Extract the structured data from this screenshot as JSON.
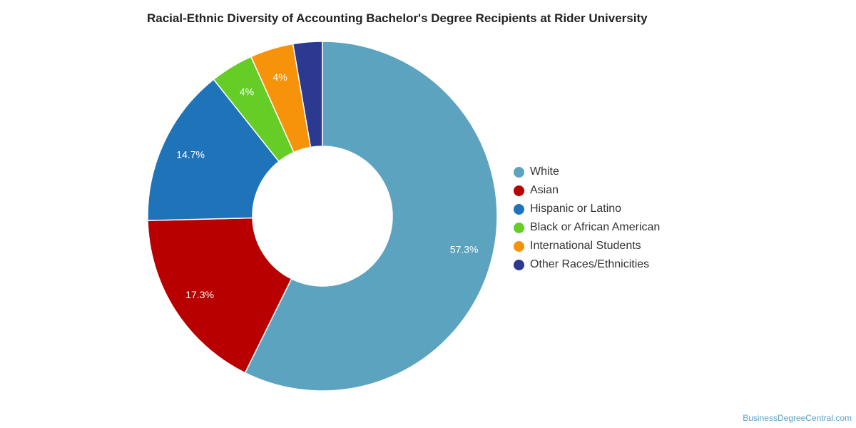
{
  "chart_data": {
    "type": "pie",
    "title": "Racial-Ethnic Diversity of Accounting Bachelor's Degree Recipients at Rider University",
    "donut": true,
    "legend_position": "right",
    "slices": [
      {
        "label": "White",
        "value": 57.3,
        "display": "57.3%",
        "color": "#5ca3c0"
      },
      {
        "label": "Asian",
        "value": 17.3,
        "display": "17.3%",
        "color": "#b90000"
      },
      {
        "label": "Hispanic or Latino",
        "value": 14.7,
        "display": "14.7%",
        "color": "#1e73b9"
      },
      {
        "label": "Black or African American",
        "value": 4.0,
        "display": "4%",
        "color": "#66cc26"
      },
      {
        "label": "International Students",
        "value": 4.0,
        "display": "4%",
        "color": "#f7930a"
      },
      {
        "label": "Other Races/Ethnicities",
        "value": 2.7,
        "display": "",
        "color": "#2b3990"
      }
    ]
  },
  "credit": "BusinessDegreeCentral.com"
}
